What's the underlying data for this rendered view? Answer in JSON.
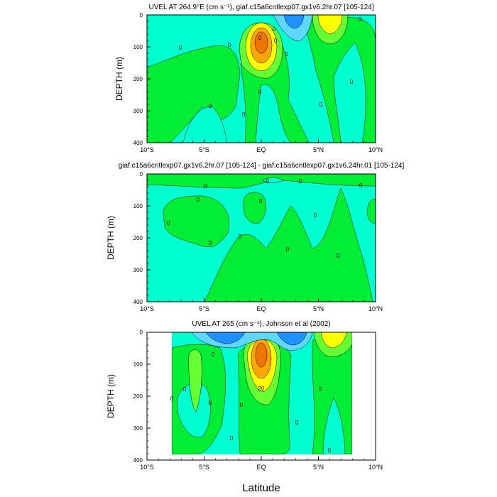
{
  "figure": {
    "shared_xlabel": "Latitude",
    "colors": {
      "cyan": "#00ffd0",
      "green": "#00ee33",
      "lightgreen": "#66ff33",
      "blue": "#1e90ff",
      "lightblue": "#5fd7ff",
      "yellow": "#ffff00",
      "orange": "#ffa500",
      "darkorange": "#ee7600",
      "white": "#ffffff"
    }
  },
  "chart_data": [
    {
      "type": "contour",
      "title": "UVEL AT 264.9°E (cm s⁻¹), giaf.c15a6cntlexp07.gx1v6.2hr.07 [105-124]",
      "xlabel": "",
      "ylabel": "DEPTH (m)",
      "x_ticks": [
        "10°S",
        "5°S",
        "EQ",
        "5°N",
        "10°N"
      ],
      "y_ticks": [
        "0",
        "100",
        "200",
        "300",
        "400"
      ],
      "xlim": [
        -10,
        10
      ],
      "ylim": [
        400,
        0
      ],
      "contour_labels": [
        "0",
        "0",
        "0",
        "0",
        "0",
        "0",
        "0",
        "0",
        "0",
        "0",
        "0",
        "0"
      ]
    },
    {
      "type": "contour",
      "title": "giaf.c15a6cntlexp07.gx1v6.2hr.07 [105-124] - giaf.c15a6cntlexp07.gx1v6.24hr.01 [105-124]",
      "xlabel": "",
      "ylabel": "DEPTH (m)",
      "x_ticks": [
        "10°S",
        "5°S",
        "EQ",
        "5°N",
        "10°N"
      ],
      "y_ticks": [
        "0",
        "100",
        "200",
        "300",
        "400"
      ],
      "xlim": [
        -10,
        10
      ],
      "ylim": [
        400,
        0
      ],
      "contour_labels": [
        "0",
        "0",
        "0",
        "0",
        "0",
        "0",
        "0",
        "0",
        "0",
        "0",
        "0",
        "0"
      ]
    },
    {
      "type": "contour",
      "title": "UVEL AT 265 (cm s⁻¹), Johnson et al (2002)",
      "xlabel": "Latitude",
      "ylabel": "DEPTH (m)",
      "x_ticks": [
        "10°S",
        "5°S",
        "EQ",
        "5°N",
        "10°N"
      ],
      "y_ticks": [
        "0",
        "100",
        "200",
        "300",
        "400"
      ],
      "xlim": [
        -10,
        10
      ],
      "ylim": [
        400,
        0
      ],
      "contour_labels": [
        "0",
        "0",
        "0",
        "0",
        "0",
        "0",
        "0",
        "0",
        "0",
        "20"
      ]
    }
  ]
}
